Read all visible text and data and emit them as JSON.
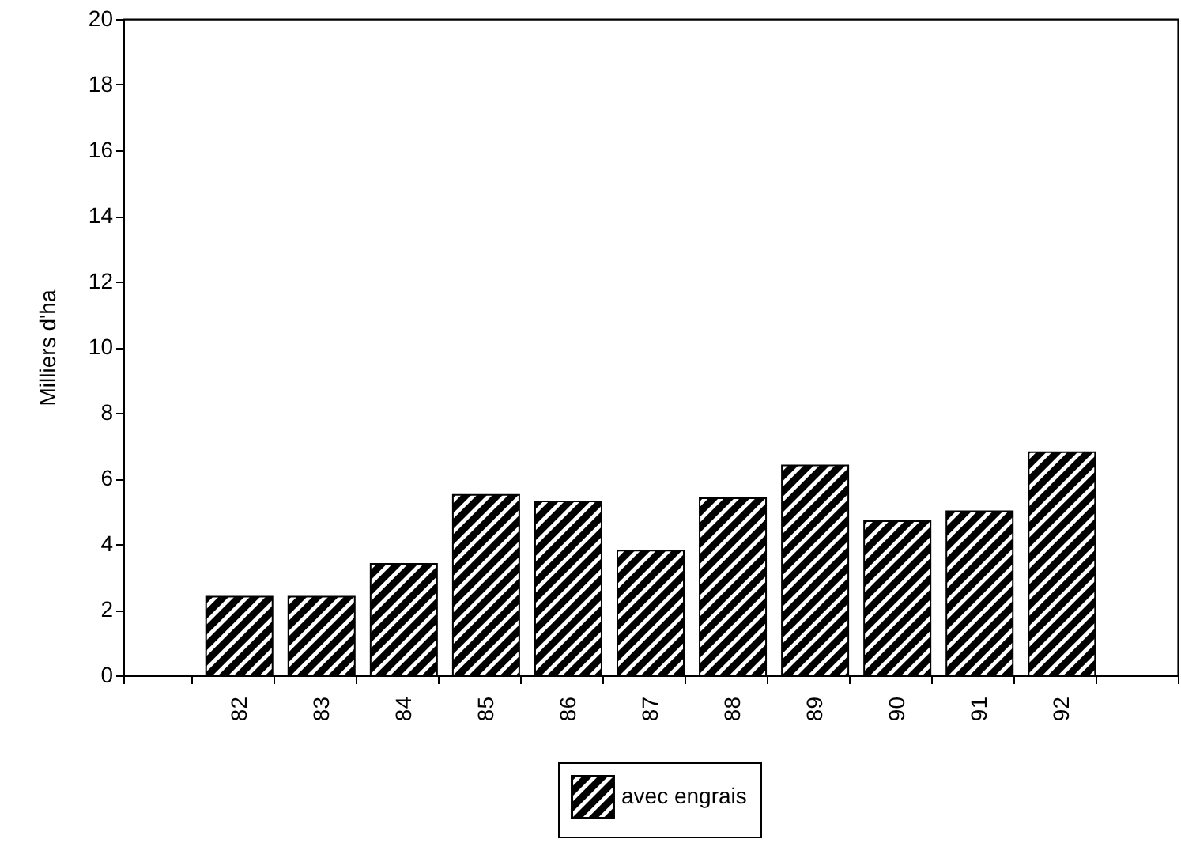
{
  "chart_data": {
    "type": "bar",
    "ylabel": "Milliers d'ha",
    "categories": [
      null,
      "82",
      "83",
      "84",
      "85",
      "86",
      "87",
      "88",
      "89",
      "90",
      "91",
      "92",
      null
    ],
    "series": [
      {
        "name": "avec engrais",
        "color": "#000000",
        "values": [
          null,
          2.4,
          2.4,
          3.4,
          5.5,
          5.3,
          3.8,
          5.4,
          6.4,
          4.7,
          5.0,
          6.8,
          null
        ]
      }
    ],
    "ylim": [
      0,
      20
    ],
    "yticks": [
      0,
      2,
      4,
      6,
      8,
      10,
      12,
      14,
      16,
      18,
      20
    ],
    "grid": false,
    "legend": "bottom"
  }
}
